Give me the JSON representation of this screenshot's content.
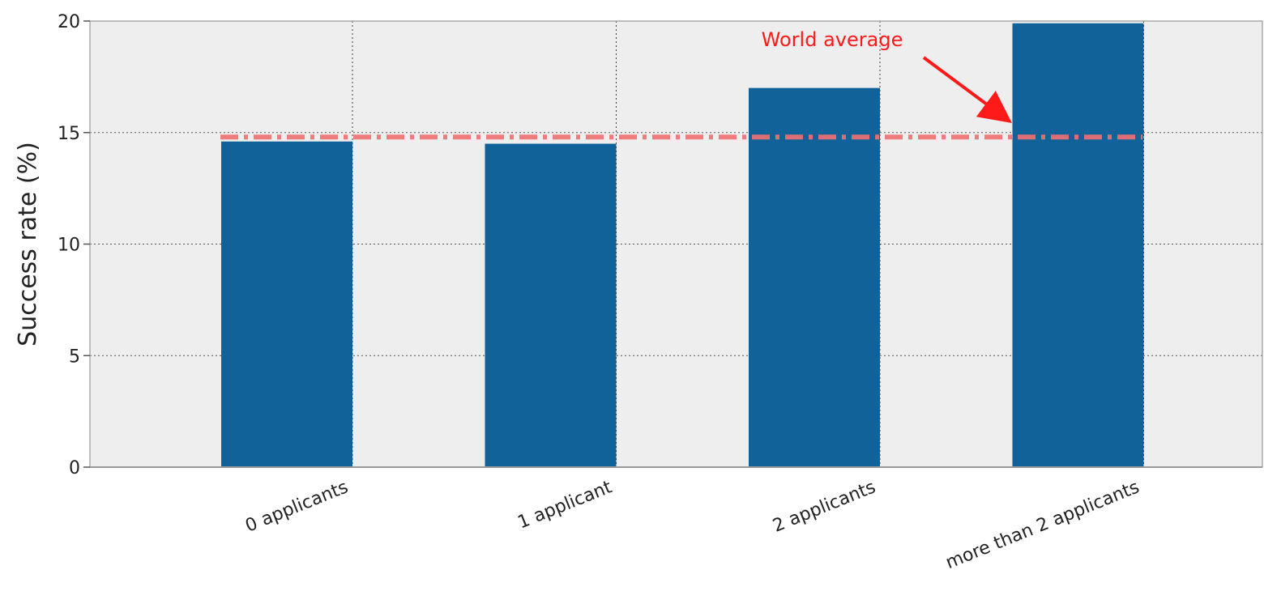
{
  "chart_data": {
    "type": "bar",
    "title": "",
    "xlabel": "",
    "ylabel": "Success rate (%)",
    "categories": [
      "0 applicants",
      "1 applicant",
      "2 applicants",
      "more than 2 applicants"
    ],
    "values": [
      14.6,
      14.5,
      17.0,
      19.9
    ],
    "ylim": [
      0,
      20
    ],
    "yticks": [
      0,
      5,
      10,
      15,
      20
    ],
    "grid": true,
    "bar_color": "#12629a",
    "background_color": "#eeeeee",
    "reference_line": {
      "value": 14.8,
      "style": "dash-dot",
      "color": "#f07070"
    },
    "annotation": {
      "text": "World average",
      "color": "#ff1a1a",
      "target": {
        "category": "more than 2 applicants",
        "value": 15.6
      }
    }
  }
}
